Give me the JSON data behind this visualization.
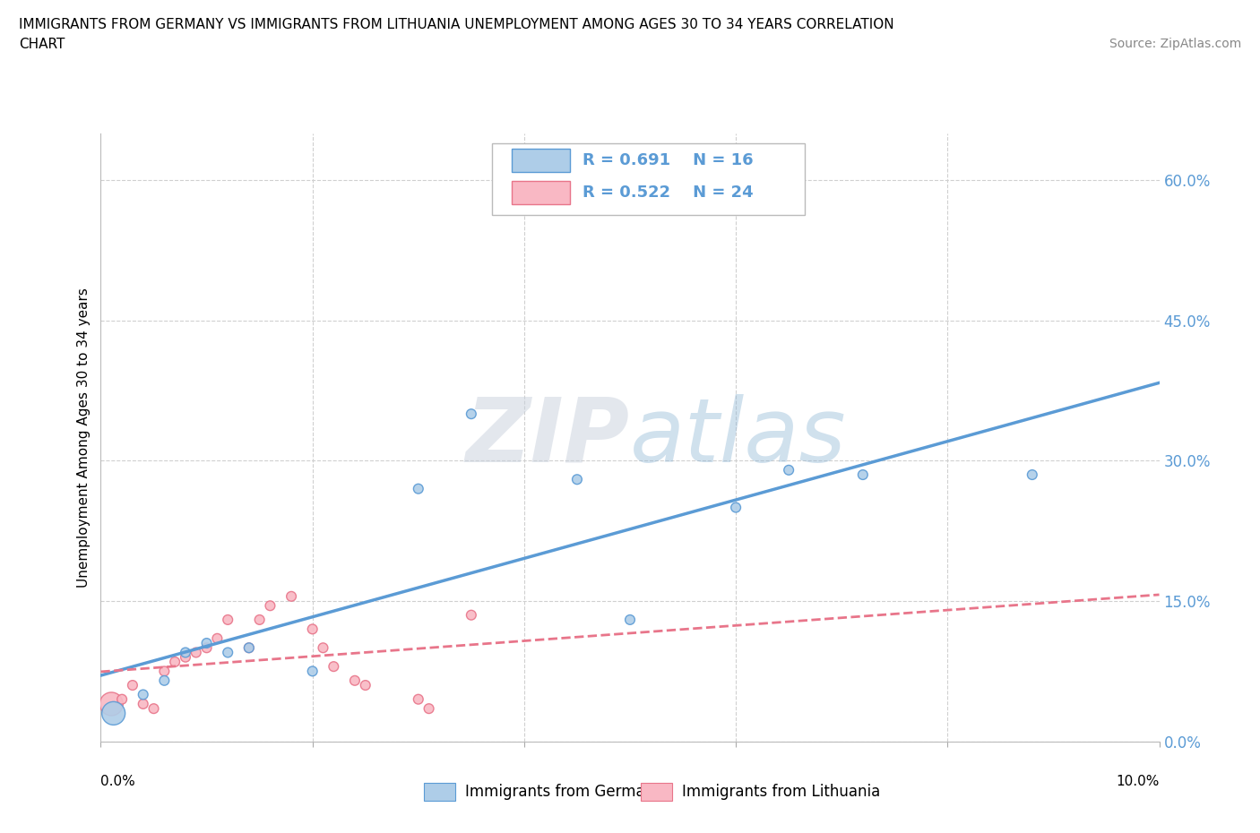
{
  "title_line1": "IMMIGRANTS FROM GERMANY VS IMMIGRANTS FROM LITHUANIA UNEMPLOYMENT AMONG AGES 30 TO 34 YEARS CORRELATION",
  "title_line2": "CHART",
  "source": "Source: ZipAtlas.com",
  "ylabel": "Unemployment Among Ages 30 to 34 years",
  "xlim": [
    0.0,
    0.1
  ],
  "ylim": [
    0.0,
    0.65
  ],
  "yticks": [
    0.0,
    0.15,
    0.3,
    0.45,
    0.6
  ],
  "ytick_labels": [
    "0.0%",
    "15.0%",
    "30.0%",
    "45.0%",
    "60.0%"
  ],
  "germany_R": 0.691,
  "germany_N": 16,
  "lithuania_R": 0.522,
  "lithuania_N": 24,
  "germany_dot_color": "#aecde8",
  "germany_edge_color": "#5b9bd5",
  "lithuania_dot_color": "#f9b8c4",
  "lithuania_edge_color": "#e8758a",
  "germany_line_color": "#5b9bd5",
  "lithuania_line_color": "#e8758a",
  "watermark_color": "#c8d8ec",
  "grid_color": "#d0d0d0",
  "germany_x": [
    0.0012,
    0.004,
    0.006,
    0.008,
    0.01,
    0.012,
    0.014,
    0.02,
    0.03,
    0.035,
    0.045,
    0.05,
    0.06,
    0.065,
    0.072,
    0.088
  ],
  "germany_y": [
    0.03,
    0.05,
    0.065,
    0.095,
    0.105,
    0.095,
    0.1,
    0.075,
    0.27,
    0.35,
    0.28,
    0.13,
    0.25,
    0.29,
    0.285,
    0.285
  ],
  "germany_sizes": [
    350,
    60,
    60,
    60,
    60,
    60,
    60,
    60,
    60,
    60,
    60,
    60,
    60,
    60,
    60,
    60
  ],
  "lithuania_x": [
    0.001,
    0.002,
    0.003,
    0.004,
    0.005,
    0.006,
    0.007,
    0.008,
    0.009,
    0.01,
    0.011,
    0.012,
    0.014,
    0.015,
    0.016,
    0.018,
    0.02,
    0.021,
    0.022,
    0.024,
    0.025,
    0.03,
    0.031,
    0.035
  ],
  "lithuania_y": [
    0.04,
    0.045,
    0.06,
    0.04,
    0.035,
    0.075,
    0.085,
    0.09,
    0.095,
    0.1,
    0.11,
    0.13,
    0.1,
    0.13,
    0.145,
    0.155,
    0.12,
    0.1,
    0.08,
    0.065,
    0.06,
    0.045,
    0.035,
    0.135
  ],
  "lithuania_sizes": [
    350,
    60,
    60,
    60,
    60,
    60,
    60,
    60,
    60,
    60,
    60,
    60,
    60,
    60,
    60,
    60,
    60,
    60,
    60,
    60,
    60,
    60,
    60,
    60
  ]
}
